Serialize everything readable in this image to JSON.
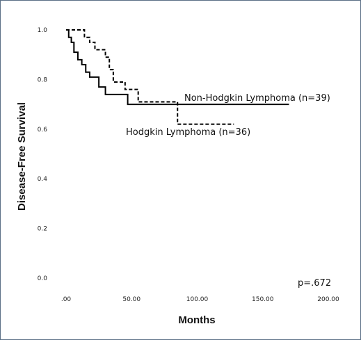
{
  "chart_data": {
    "type": "line",
    "title": "",
    "xlabel": "Months",
    "ylabel": "Disease-Free Survival",
    "xlim": [
      -5,
      210
    ],
    "ylim": [
      -0.03,
      1.03
    ],
    "x_ticks": [
      ".00",
      "50.00",
      "100.00",
      "150.00",
      "200.00"
    ],
    "x_tick_values": [
      0,
      50,
      100,
      150,
      200
    ],
    "y_ticks": [
      "0.0",
      "0.2",
      "0.4",
      "0.6",
      "0.8",
      "1.0"
    ],
    "y_tick_values": [
      0.0,
      0.2,
      0.4,
      0.6,
      0.8,
      1.0
    ],
    "grid": false,
    "annotation": "p=.672",
    "series": [
      {
        "name": "Non-Hodgkin Lymphoma (n=39)",
        "style": "solid",
        "color": "#000000",
        "x": [
          0,
          2,
          4,
          6,
          9,
          12,
          15,
          18,
          25,
          30,
          47,
          170
        ],
        "y": [
          1.0,
          0.97,
          0.95,
          0.91,
          0.88,
          0.86,
          0.83,
          0.81,
          0.77,
          0.74,
          0.7,
          0.7
        ]
      },
      {
        "name": "Hodgkin Lymphoma (n=36)",
        "style": "dashed",
        "color": "#000000",
        "x": [
          0,
          14,
          18,
          22,
          30,
          33,
          36,
          45,
          55,
          85,
          100,
          128
        ],
        "y": [
          1.0,
          0.97,
          0.95,
          0.92,
          0.89,
          0.84,
          0.79,
          0.76,
          0.71,
          0.62,
          0.62,
          0.62
        ]
      }
    ]
  }
}
